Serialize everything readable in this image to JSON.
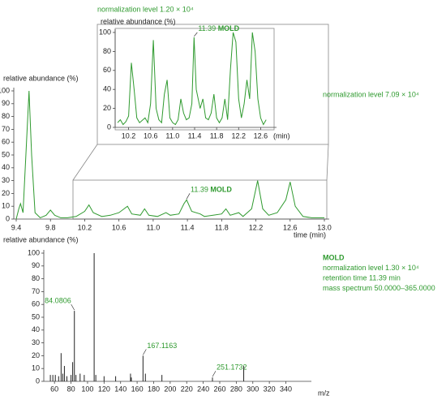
{
  "chart_data": [
    {
      "type": "line",
      "ylabel": "relative abundance (%)",
      "xlabel": "time (min)",
      "note": "normalization level 7.09 × 10⁴",
      "ylim": [
        0,
        100
      ],
      "yticks": [
        0,
        10,
        20,
        30,
        40,
        50,
        60,
        70,
        80,
        90,
        100
      ],
      "xlim": [
        9.4,
        13.0
      ],
      "xticks": [
        9.4,
        9.8,
        10.2,
        10.6,
        {
          "value": 11.0,
          "label": "11.0"
        },
        11.4,
        11.8,
        12.2,
        12.6,
        {
          "value": 13.0,
          "label": "13.0"
        }
      ],
      "annotation": {
        "x": 11.39,
        "text": "MOLD"
      },
      "series": [
        {
          "color": "#2f9a2f",
          "x": [
            9.4,
            9.43,
            9.45,
            9.48,
            9.52,
            9.55,
            9.58,
            9.62,
            9.68,
            9.75,
            9.8,
            9.85,
            9.92,
            10.0,
            10.1,
            10.2,
            10.25,
            10.3,
            10.4,
            10.5,
            10.6,
            10.7,
            10.75,
            10.85,
            10.9,
            10.95,
            11.05,
            11.15,
            11.2,
            11.3,
            11.36,
            11.39,
            11.45,
            11.55,
            11.6,
            11.7,
            11.8,
            11.85,
            11.9,
            12.0,
            12.05,
            12.15,
            12.22,
            12.28,
            12.35,
            12.45,
            12.55,
            12.6,
            12.66,
            12.75,
            12.85,
            13.0
          ],
          "values": [
            0,
            8,
            12,
            5,
            60,
            100,
            50,
            5,
            1,
            3,
            7,
            3,
            1,
            1,
            2,
            6,
            11,
            5,
            2,
            3,
            5,
            10,
            4,
            3,
            8,
            3,
            2,
            5,
            3,
            4,
            12,
            15,
            6,
            4,
            2,
            3,
            4,
            8,
            3,
            5,
            2,
            8,
            30,
            8,
            3,
            5,
            15,
            29,
            10,
            2,
            1,
            1
          ]
        }
      ]
    },
    {
      "type": "line",
      "title": "normalization level 1.20 × 10⁴",
      "ylabel": "relative abundance (%)",
      "xlabel": "(min)",
      "ylim": [
        0,
        100
      ],
      "yticks": [
        0,
        20,
        40,
        60,
        80,
        100
      ],
      "xlim": [
        10.0,
        12.8
      ],
      "xticks": [
        10.2,
        10.6,
        {
          "value": 11.0,
          "label": "11.0"
        },
        11.4,
        11.8,
        12.2,
        12.6
      ],
      "annotation": {
        "x": 11.39,
        "text": "MOLD"
      },
      "series": [
        {
          "color": "#2f9a2f",
          "x": [
            10.0,
            10.05,
            10.1,
            10.15,
            10.2,
            10.25,
            10.3,
            10.35,
            10.4,
            10.5,
            10.55,
            10.6,
            10.65,
            10.7,
            10.75,
            10.8,
            10.85,
            10.9,
            10.95,
            11.0,
            11.05,
            11.1,
            11.15,
            11.2,
            11.25,
            11.3,
            11.35,
            11.39,
            11.43,
            11.5,
            11.55,
            11.6,
            11.65,
            11.7,
            11.75,
            11.8,
            11.85,
            11.9,
            11.95,
            12.0,
            12.05,
            12.1,
            12.15,
            12.2,
            12.25,
            12.3,
            12.35,
            12.4,
            12.45,
            12.5,
            12.55,
            12.6,
            12.65,
            12.7
          ],
          "values": [
            5,
            8,
            3,
            6,
            12,
            68,
            40,
            10,
            5,
            10,
            5,
            25,
            92,
            20,
            8,
            5,
            35,
            50,
            10,
            5,
            3,
            8,
            30,
            15,
            8,
            10,
            25,
            95,
            40,
            20,
            30,
            10,
            8,
            15,
            35,
            10,
            5,
            10,
            30,
            8,
            60,
            100,
            90,
            30,
            10,
            25,
            50,
            30,
            100,
            80,
            30,
            10,
            3,
            8
          ]
        }
      ]
    },
    {
      "type": "stem",
      "ylabel": "relative abundance (%)",
      "xlabel": "m/z",
      "info": [
        "MOLD",
        "normalization level 1.30 × 10⁴",
        "retention time 11.39 min",
        "mass spectrum 50.0000–365.0000"
      ],
      "ylim": [
        0,
        100
      ],
      "yticks": [
        0,
        10,
        20,
        30,
        40,
        50,
        60,
        70,
        80,
        90,
        100
      ],
      "xlim": [
        50,
        365
      ],
      "xticks": [
        60,
        80,
        100,
        120,
        140,
        160,
        180,
        200,
        220,
        240,
        260,
        280,
        300,
        320,
        340
      ],
      "series": [
        {
          "color": "#2f9a2f",
          "x": [
            55,
            58,
            61,
            65,
            68,
            70,
            72,
            75,
            80,
            82,
            84.0806,
            86,
            91,
            96,
            108,
            110,
            120,
            134,
            152,
            153,
            167.1163,
            170,
            190,
            251.1732,
            289
          ],
          "values": [
            5,
            5,
            5,
            4,
            22,
            6,
            12,
            4,
            5,
            15,
            55,
            5,
            6,
            5,
            100,
            5,
            4,
            4,
            6,
            3,
            20,
            6,
            5,
            3,
            12
          ],
          "x_labels": [
            null,
            null,
            null,
            null,
            null,
            null,
            null,
            null,
            null,
            null,
            "84.0806",
            null,
            null,
            null,
            null,
            null,
            null,
            null,
            null,
            null,
            "167.1163",
            null,
            null,
            "251.1732",
            null
          ]
        }
      ]
    }
  ]
}
